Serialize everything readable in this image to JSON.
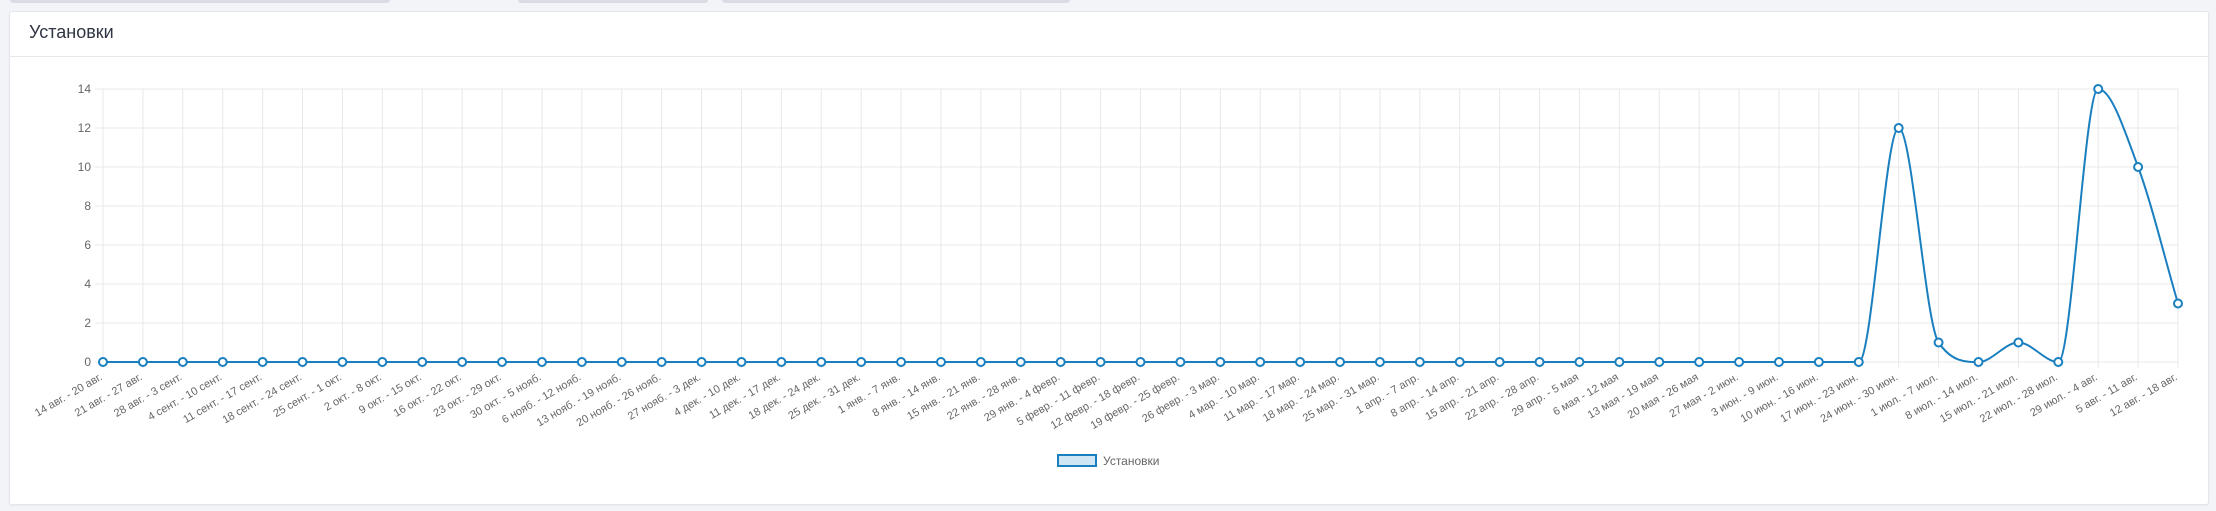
{
  "header": {
    "title": "Установки"
  },
  "colors": {
    "line": "#1a7fbf",
    "legend_fill": "#cfe6f5",
    "grid": "#e8e8e8",
    "tick": "#666666"
  },
  "chart_data": {
    "type": "line",
    "title": "Установки",
    "xlabel": "",
    "ylabel": "",
    "ylim": [
      0,
      14
    ],
    "yticks": [
      0,
      2,
      4,
      6,
      8,
      10,
      12,
      14
    ],
    "grid": true,
    "legend_position": "bottom",
    "categories": [
      "14 авг. - 20 авг.",
      "21 авг. - 27 авг.",
      "28 авг. - 3 сент.",
      "4 сент. - 10 сент.",
      "11 сент. - 17 сент.",
      "18 сент. - 24 сент.",
      "25 сент. - 1 окт.",
      "2 окт. - 8 окт.",
      "9 окт. - 15 окт.",
      "16 окт. - 22 окт.",
      "23 окт. - 29 окт.",
      "30 окт. - 5 нояб.",
      "6 нояб. - 12 нояб.",
      "13 нояб. - 19 нояб.",
      "20 нояб. - 26 нояб.",
      "27 нояб. - 3 дек.",
      "4 дек. - 10 дек.",
      "11 дек. - 17 дек.",
      "18 дек. - 24 дек.",
      "25 дек. - 31 дек.",
      "1 янв. - 7 янв.",
      "8 янв. - 14 янв.",
      "15 янв. - 21 янв.",
      "22 янв. - 28 янв.",
      "29 янв. - 4 февр.",
      "5 февр. - 11 февр.",
      "12 февр. - 18 февр.",
      "19 февр. - 25 февр.",
      "26 февр. - 3 мар.",
      "4 мар. - 10 мар.",
      "11 мар. - 17 мар.",
      "18 мар. - 24 мар.",
      "25 мар. - 31 мар.",
      "1 апр. - 7 апр.",
      "8 апр. - 14 апр.",
      "15 апр. - 21 апр.",
      "22 апр. - 28 апр.",
      "29 апр. - 5 мая",
      "6 мая - 12 мая",
      "13 мая - 19 мая",
      "20 мая - 26 мая",
      "27 мая - 2 июн.",
      "3 июн. - 9 июн.",
      "10 июн. - 16 июн.",
      "17 июн. - 23 июн.",
      "24 июн. - 30 июн.",
      "1 июл. - 7 июл.",
      "8 июл. - 14 июл.",
      "15 июл. - 21 июл.",
      "22 июл. - 28 июл.",
      "29 июл. - 4 авг.",
      "5 авг. - 11 авг.",
      "12 авг. - 18 авг."
    ],
    "series": [
      {
        "name": "Установки",
        "values": [
          0,
          0,
          0,
          0,
          0,
          0,
          0,
          0,
          0,
          0,
          0,
          0,
          0,
          0,
          0,
          0,
          0,
          0,
          0,
          0,
          0,
          0,
          0,
          0,
          0,
          0,
          0,
          0,
          0,
          0,
          0,
          0,
          0,
          0,
          0,
          0,
          0,
          0,
          0,
          0,
          0,
          0,
          0,
          0,
          0,
          12,
          1,
          0,
          1,
          0,
          14,
          10,
          3
        ]
      }
    ]
  }
}
